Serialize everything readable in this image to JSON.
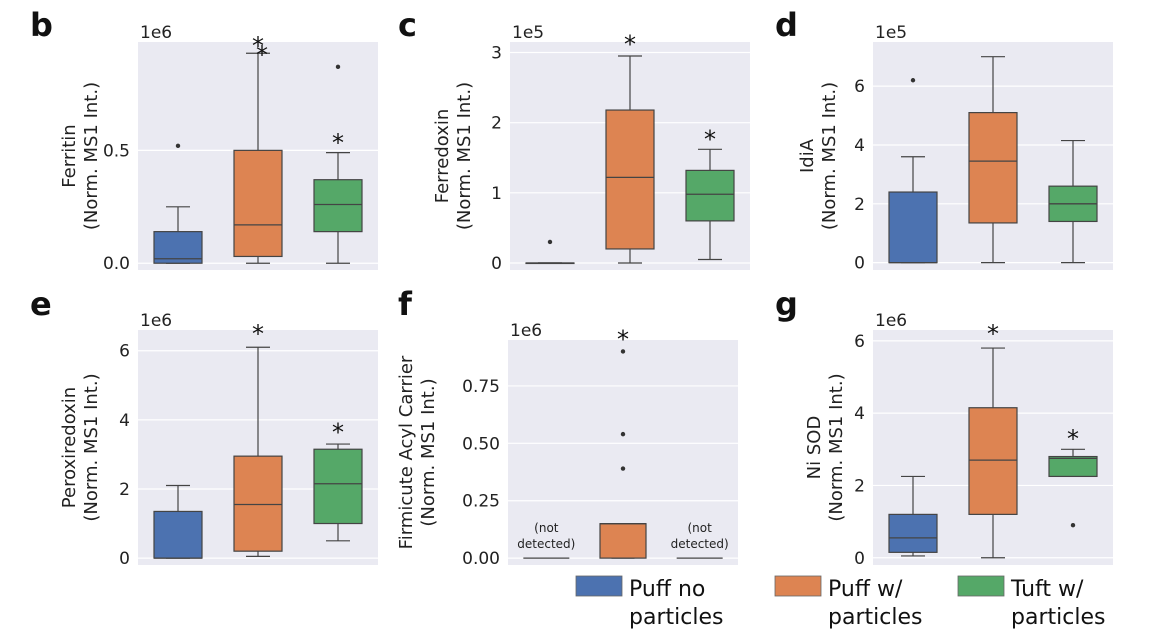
{
  "colors": {
    "puff_no": "#4c72b0",
    "puff_w": "#dd8452",
    "tuft_w": "#55a868",
    "plot_bg": "#eaeaf2",
    "line": "#444444"
  },
  "legend": [
    {
      "line1": "Puff no",
      "line2": "particles",
      "color_key": "puff_no"
    },
    {
      "line1": "Puff w/",
      "line2": "particles",
      "color_key": "puff_w"
    },
    {
      "line1": "Tuft w/",
      "line2": "particles",
      "color_key": "tuft_w"
    }
  ],
  "chart_data": [
    {
      "letter": "b",
      "type": "box",
      "exponent": "1e6",
      "ylabel": [
        "Ferritin",
        "(Norm. MS1 Int.)"
      ],
      "ylim": [
        -0.03,
        0.98
      ],
      "ticks": [
        0.0,
        0.5
      ],
      "tick_labels": [
        "0.0",
        "0.5"
      ],
      "boxes": [
        {
          "group": "Puff no particles",
          "color_key": "puff_no",
          "whislo": 0,
          "q1": 0.0,
          "med": 0.02,
          "q3": 0.14,
          "whishi": 0.25,
          "fliers": [
            0.52
          ],
          "star": "",
          "star_y": null
        },
        {
          "group": "Puff w/ particles",
          "color_key": "puff_w",
          "whislo": 0,
          "q1": 0.03,
          "med": 0.17,
          "q3": 0.5,
          "whishi": 0.93,
          "fliers": [],
          "star": "*",
          "star_y": 0.98
        },
        {
          "group": "Tuft w/ particles",
          "color_key": "tuft_w",
          "whislo": 0,
          "q1": 0.14,
          "med": 0.26,
          "q3": 0.37,
          "whishi": 0.49,
          "fliers": [
            0.87
          ],
          "star": "*",
          "star_y": 0.55
        }
      ],
      "extra_stars": [
        {
          "box": 1,
          "y": 0.95
        }
      ]
    },
    {
      "letter": "c",
      "type": "box",
      "exponent": "1e5",
      "ylabel": [
        "Ferredoxin",
        "(Norm. MS1 Int.)"
      ],
      "ylim": [
        -0.1,
        3.15
      ],
      "ticks": [
        0,
        1,
        2,
        3
      ],
      "tick_labels": [
        "0",
        "1",
        "2",
        "3"
      ],
      "boxes": [
        {
          "group": "Puff no particles",
          "color_key": "puff_no",
          "whislo": 0,
          "q1": 0,
          "med": 0,
          "q3": 0,
          "whishi": 0,
          "fliers": [
            0.3
          ],
          "star": "",
          "star_y": null
        },
        {
          "group": "Puff w/ particles",
          "color_key": "puff_w",
          "whislo": 0,
          "q1": 0.2,
          "med": 1.22,
          "q3": 2.18,
          "whishi": 2.95,
          "fliers": [],
          "star": "*",
          "star_y": 3.17
        },
        {
          "group": "Tuft w/ particles",
          "color_key": "tuft_w",
          "whislo": 0.05,
          "q1": 0.6,
          "med": 0.98,
          "q3": 1.32,
          "whishi": 1.62,
          "fliers": [],
          "star": "*",
          "star_y": 1.82
        }
      ],
      "extra_stars": []
    },
    {
      "letter": "d",
      "type": "box",
      "exponent": "1e5",
      "ylabel": [
        "IdiA",
        "(Norm. MS1 Int.)"
      ],
      "ylim": [
        -0.25,
        7.5
      ],
      "ticks": [
        0,
        2,
        4,
        6
      ],
      "tick_labels": [
        "0",
        "2",
        "4",
        "6"
      ],
      "boxes": [
        {
          "group": "Puff no particles",
          "color_key": "puff_no",
          "whislo": 0,
          "q1": 0,
          "med": 0,
          "q3": 2.4,
          "whishi": 3.6,
          "fliers": [
            6.2
          ],
          "star": "",
          "star_y": null
        },
        {
          "group": "Puff w/ particles",
          "color_key": "puff_w",
          "whislo": 0,
          "q1": 1.35,
          "med": 3.45,
          "q3": 5.1,
          "whishi": 7.0,
          "fliers": [],
          "star": "",
          "star_y": null
        },
        {
          "group": "Tuft w/ particles",
          "color_key": "tuft_w",
          "whislo": 0,
          "q1": 1.4,
          "med": 2.0,
          "q3": 2.6,
          "whishi": 4.15,
          "fliers": [],
          "star": "",
          "star_y": null
        }
      ],
      "extra_stars": []
    },
    {
      "letter": "e",
      "type": "box",
      "exponent": "1e6",
      "ylabel": [
        "Peroxiredoxin",
        "(Norm. MS1 Int.)"
      ],
      "ylim": [
        -0.2,
        6.6
      ],
      "ticks": [
        0,
        2,
        4,
        6
      ],
      "tick_labels": [
        "0",
        "2",
        "4",
        "6"
      ],
      "boxes": [
        {
          "group": "Puff no particles",
          "color_key": "puff_no",
          "whislo": 0,
          "q1": 0,
          "med": 0,
          "q3": 1.35,
          "whishi": 2.1,
          "fliers": [],
          "star": "",
          "star_y": null
        },
        {
          "group": "Puff w/ particles",
          "color_key": "puff_w",
          "whislo": 0.05,
          "q1": 0.2,
          "med": 1.55,
          "q3": 2.95,
          "whishi": 6.1,
          "fliers": [],
          "star": "*",
          "star_y": 6.6
        },
        {
          "group": "Tuft w/ particles",
          "color_key": "tuft_w",
          "whislo": 0.5,
          "q1": 1.0,
          "med": 2.15,
          "q3": 3.15,
          "whishi": 3.3,
          "fliers": [],
          "star": "*",
          "star_y": 3.75
        }
      ],
      "extra_stars": []
    },
    {
      "letter": "f",
      "type": "box",
      "exponent": "1e6",
      "ylabel": [
        "Firmicute Acyl Carrier",
        "(Norm. MS1 Int.)"
      ],
      "ylim": [
        -0.03,
        0.95
      ],
      "ticks": [
        0.0,
        0.25,
        0.5,
        0.75
      ],
      "tick_labels": [
        "0.00",
        "0.25",
        "0.50",
        "0.75"
      ],
      "boxes": [
        {
          "group": "Puff no particles",
          "color_key": "puff_no",
          "not_detected": true,
          "label1": "(not",
          "label2": "detected)",
          "star": "",
          "star_y": null
        },
        {
          "group": "Puff w/ particles",
          "color_key": "puff_w",
          "whislo": 0,
          "q1": 0.0,
          "med": 0.15,
          "q3": 0.15,
          "whishi": 0.15,
          "fliers": [
            0.39,
            0.54,
            0.9
          ],
          "star": "*",
          "star_y": 0.97
        },
        {
          "group": "Tuft w/ particles",
          "color_key": "tuft_w",
          "not_detected": true,
          "label1": "(not",
          "label2": "detected)",
          "star": "",
          "star_y": null
        }
      ],
      "extra_stars": []
    },
    {
      "letter": "g",
      "type": "box",
      "exponent": "1e6",
      "ylabel": [
        "Ni SOD",
        "(Norm. MS1 Int.)"
      ],
      "ylim": [
        -0.2,
        6.3
      ],
      "ticks": [
        0,
        2,
        4,
        6
      ],
      "tick_labels": [
        "0",
        "2",
        "4",
        "6"
      ],
      "boxes": [
        {
          "group": "Puff no particles",
          "color_key": "puff_no",
          "whislo": 0.05,
          "q1": 0.15,
          "med": 0.55,
          "q3": 1.2,
          "whishi": 2.25,
          "fliers": [],
          "star": "",
          "star_y": null
        },
        {
          "group": "Puff w/ particles",
          "color_key": "puff_w",
          "whislo": 0,
          "q1": 1.2,
          "med": 2.7,
          "q3": 4.15,
          "whishi": 5.8,
          "fliers": [],
          "star": "*",
          "star_y": 6.3
        },
        {
          "group": "Tuft w/ particles",
          "color_key": "tuft_w",
          "whislo": 2.25,
          "q1": 2.25,
          "med": 2.75,
          "q3": 2.8,
          "whishi": 3.0,
          "fliers": [
            0.9
          ],
          "star": "*",
          "star_y": 3.4
        }
      ],
      "extra_stars": []
    }
  ]
}
